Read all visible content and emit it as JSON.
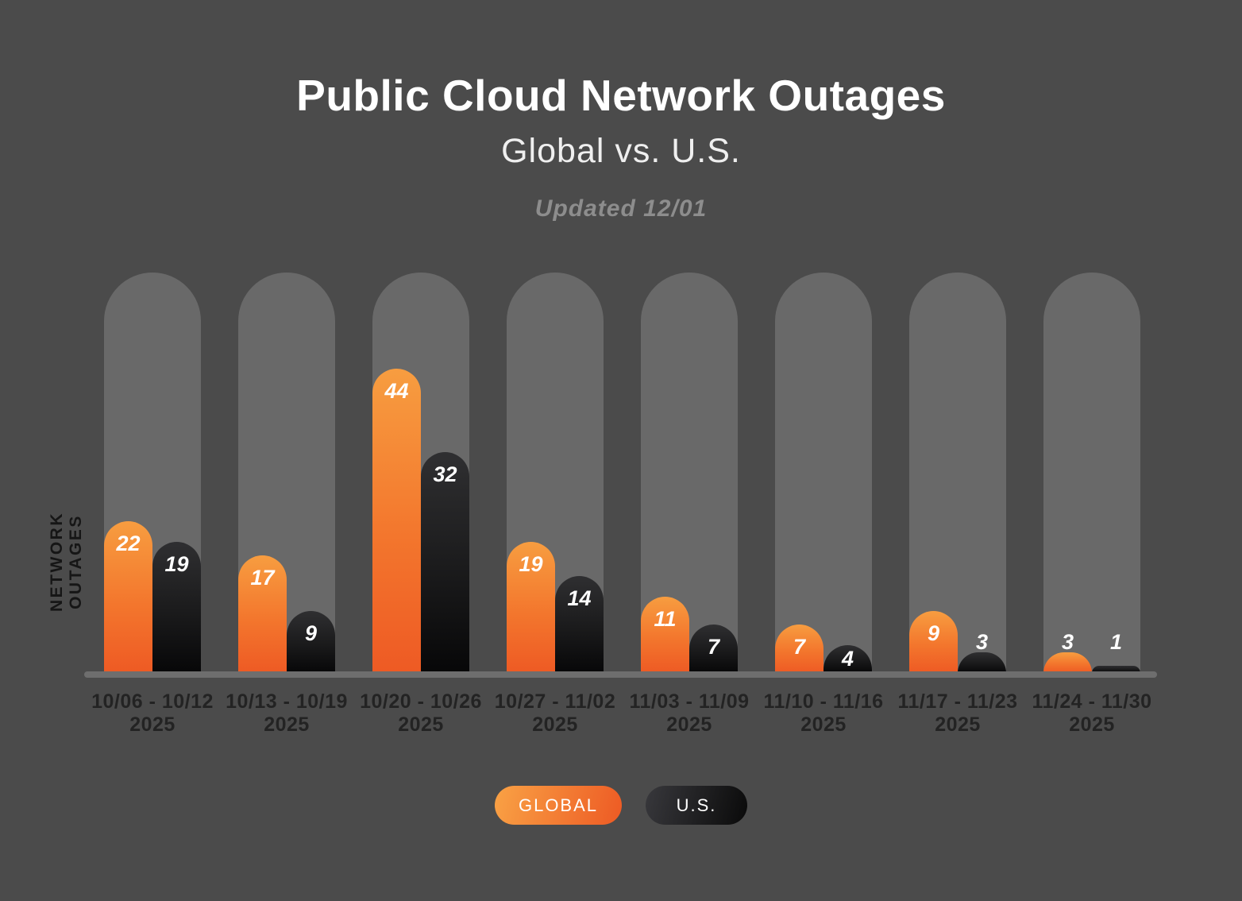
{
  "header": {
    "title": "Public Cloud Network Outages",
    "subtitle": "Global vs. U.S.",
    "updated": "Updated 12/01"
  },
  "chart_data": {
    "type": "bar",
    "title": "Public Cloud Network Outages",
    "subtitle": "Global vs. U.S.",
    "annotation": "Updated 12/01",
    "categories": [
      "10/06 - 10/12",
      "10/13 - 10/19",
      "10/20 - 10/26",
      "10/27 - 11/02",
      "11/03 - 11/09",
      "11/10 - 11/16",
      "11/17 - 11/23",
      "11/24 - 11/30"
    ],
    "category_year": "2025",
    "series": [
      {
        "name": "GLOBAL",
        "values": [
          22,
          17,
          44,
          19,
          11,
          7,
          9,
          3
        ]
      },
      {
        "name": "U.S.",
        "values": [
          19,
          9,
          32,
          14,
          7,
          4,
          3,
          1
        ]
      }
    ],
    "ylabel": "NETWORK OUTAGES",
    "xlabel": "",
    "ylim": [
      0,
      58
    ],
    "grid": false,
    "legend_position": "bottom"
  },
  "colors": {
    "background": "#4b4b4b",
    "track": "#696969",
    "baseline": "#6e6e6e",
    "global_top": "#f79d40",
    "global_bottom": "#ee5a24",
    "us_top": "#2f2f31",
    "us_bottom": "#070708",
    "tick_label": "#232323",
    "value_label": "#ffffff",
    "title": "#ffffff",
    "subtitle": "#efefef",
    "updated": "#8d8d8d"
  }
}
